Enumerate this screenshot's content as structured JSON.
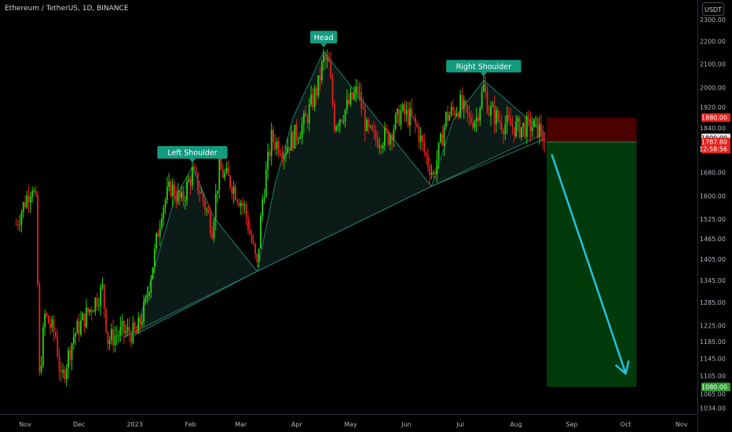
{
  "header": {
    "title": "Ethereum / TetherUS, 1D, BINANCE",
    "currency": "USDT"
  },
  "colors": {
    "background": "#000000",
    "up_candle": "#26d40a",
    "down_candle": "#e8221c",
    "pattern_line": "#1f7d6a",
    "pattern_fill": "#0c1a18",
    "label_bg": "#139b7f",
    "arrow": "#25c1e0",
    "stop_zone": "#4a0000",
    "target_zone": "#003a0a",
    "axis_text": "#b2b5be",
    "badge_red": "#e8221c",
    "badge_green": "#2a9d2a"
  },
  "chart_data": {
    "type": "candlestick",
    "title": "Ethereum / TetherUS, 1D, BINANCE",
    "y_axis": {
      "ticks": [
        1034,
        1065,
        1105,
        1145,
        1185,
        1225,
        1285,
        1345,
        1405,
        1465,
        1525,
        1600,
        1680,
        1760,
        1840,
        1920,
        2000,
        2100,
        2200,
        2300
      ],
      "tick_labels": [
        "1034.00",
        "1065.00",
        "1105.00",
        "1145.00",
        "1185.00",
        "1225.00",
        "1285.00",
        "1345.00",
        "1405.00",
        "1465.00",
        "1525.00",
        "1600.00",
        "1680.00",
        "1760.00",
        "1840.00",
        "1920.00",
        "2000.00",
        "2100.00",
        "2200.00",
        "2300.00"
      ],
      "scale": "log",
      "range": [
        1020,
        2330
      ]
    },
    "x_axis": {
      "tick_labels": [
        "Nov",
        "Dec",
        "2023",
        "Feb",
        "Mar",
        "Apr",
        "May",
        "Jun",
        "Jul",
        "Aug",
        "Sep",
        "Oct",
        "Nov"
      ],
      "tick_dates": [
        "2022-11-01",
        "2022-12-01",
        "2023-01-01",
        "2023-02-01",
        "2023-03-01",
        "2023-04-01",
        "2023-05-01",
        "2023-06-01",
        "2023-07-01",
        "2023-08-01",
        "2023-09-01",
        "2023-10-01",
        "2023-11-01"
      ]
    },
    "price_path": [
      [
        "2022-10-27",
        1510
      ],
      [
        "2022-11-05",
        1640
      ],
      [
        "2022-11-07",
        1570
      ],
      [
        "2022-11-08",
        1330
      ],
      [
        "2022-11-09",
        1100
      ],
      [
        "2022-11-12",
        1250
      ],
      [
        "2022-11-18",
        1200
      ],
      [
        "2022-11-21",
        1090
      ],
      [
        "2022-11-28",
        1200
      ],
      [
        "2022-12-06",
        1260
      ],
      [
        "2022-12-14",
        1320
      ],
      [
        "2022-12-17",
        1190
      ],
      [
        "2022-12-25",
        1210
      ],
      [
        "2023-01-02",
        1205
      ],
      [
        "2023-01-07",
        1280
      ],
      [
        "2023-01-12",
        1420
      ],
      [
        "2023-01-16",
        1560
      ],
      [
        "2023-01-21",
        1630
      ],
      [
        "2023-01-27",
        1580
      ],
      [
        "2023-02-02",
        1680
      ],
      [
        "2023-02-06",
        1620
      ],
      [
        "2023-02-13",
        1500
      ],
      [
        "2023-02-17",
        1690
      ],
      [
        "2023-02-24",
        1640
      ],
      [
        "2023-03-03",
        1560
      ],
      [
        "2023-03-10",
        1380
      ],
      [
        "2023-03-13",
        1590
      ],
      [
        "2023-03-18",
        1800
      ],
      [
        "2023-03-25",
        1760
      ],
      [
        "2023-04-01",
        1820
      ],
      [
        "2023-04-06",
        1870
      ],
      [
        "2023-04-13",
        2010
      ],
      [
        "2023-04-16",
        2120
      ],
      [
        "2023-04-19",
        2090
      ],
      [
        "2023-04-22",
        1860
      ],
      [
        "2023-04-28",
        1910
      ],
      [
        "2023-05-05",
        1990
      ],
      [
        "2023-05-10",
        1830
      ],
      [
        "2023-05-14",
        1800
      ],
      [
        "2023-05-22",
        1810
      ],
      [
        "2023-05-29",
        1900
      ],
      [
        "2023-06-03",
        1880
      ],
      [
        "2023-06-07",
        1840
      ],
      [
        "2023-06-11",
        1750
      ],
      [
        "2023-06-16",
        1670
      ],
      [
        "2023-06-20",
        1780
      ],
      [
        "2023-06-23",
        1880
      ],
      [
        "2023-07-01",
        1930
      ],
      [
        "2023-07-06",
        1870
      ],
      [
        "2023-07-10",
        1880
      ],
      [
        "2023-07-14",
        2000
      ],
      [
        "2023-07-17",
        1910
      ],
      [
        "2023-07-24",
        1860
      ],
      [
        "2023-08-02",
        1840
      ],
      [
        "2023-08-10",
        1850
      ],
      [
        "2023-08-15",
        1830
      ],
      [
        "2023-08-17",
        1787.8
      ]
    ],
    "patterns": {
      "left_shoulder_outline": [
        [
          "2023-01-01",
          1202
        ],
        [
          "2023-01-12",
          1380
        ],
        [
          "2023-01-23",
          1590
        ],
        [
          "2023-02-02",
          1700
        ],
        [
          "2023-02-14",
          1530
        ],
        [
          "2023-03-10",
          1370
        ]
      ],
      "head_outline": [
        [
          "2023-03-10",
          1370
        ],
        [
          "2023-03-20",
          1640
        ],
        [
          "2023-03-30",
          1880
        ],
        [
          "2023-04-16",
          2155
        ],
        [
          "2023-05-05",
          1970
        ],
        [
          "2023-06-15",
          1632
        ]
      ],
      "right_shoulder_outline": [
        [
          "2023-06-15",
          1632
        ],
        [
          "2023-06-27",
          1870
        ],
        [
          "2023-07-14",
          2030
        ],
        [
          "2023-08-17",
          1820
        ]
      ],
      "neckline": [
        [
          "2022-12-25",
          1195
        ],
        [
          "2023-03-10",
          1370
        ],
        [
          "2023-06-15",
          1632
        ],
        [
          "2023-08-17",
          1800
        ]
      ]
    },
    "annotations": [
      {
        "text": "Left Shoulder",
        "date": "2023-02-02",
        "price": 1700
      },
      {
        "text": "Head",
        "date": "2023-04-16",
        "price": 2155
      },
      {
        "text": "Right Shoulder",
        "date": "2023-07-14",
        "price": 2030
      }
    ],
    "trade": {
      "entry": 1787.8,
      "stop": 1880,
      "target": 1080,
      "start_date": "2023-08-18",
      "end_date": "2023-10-07",
      "arrow_from": [
        "2023-08-21",
        1740
      ],
      "arrow_to": [
        "2023-10-01",
        1110
      ]
    },
    "price_badges": [
      {
        "label": "1880.00",
        "price": 1880,
        "color": "badge_red"
      },
      {
        "label": "1800.00",
        "price": 1803,
        "color": "light"
      },
      {
        "label": "1787.80",
        "price": 1787.8,
        "color": "badge_red",
        "sub": "12:58:56"
      },
      {
        "label": "1080.00",
        "price": 1080,
        "color": "badge_green"
      }
    ]
  }
}
